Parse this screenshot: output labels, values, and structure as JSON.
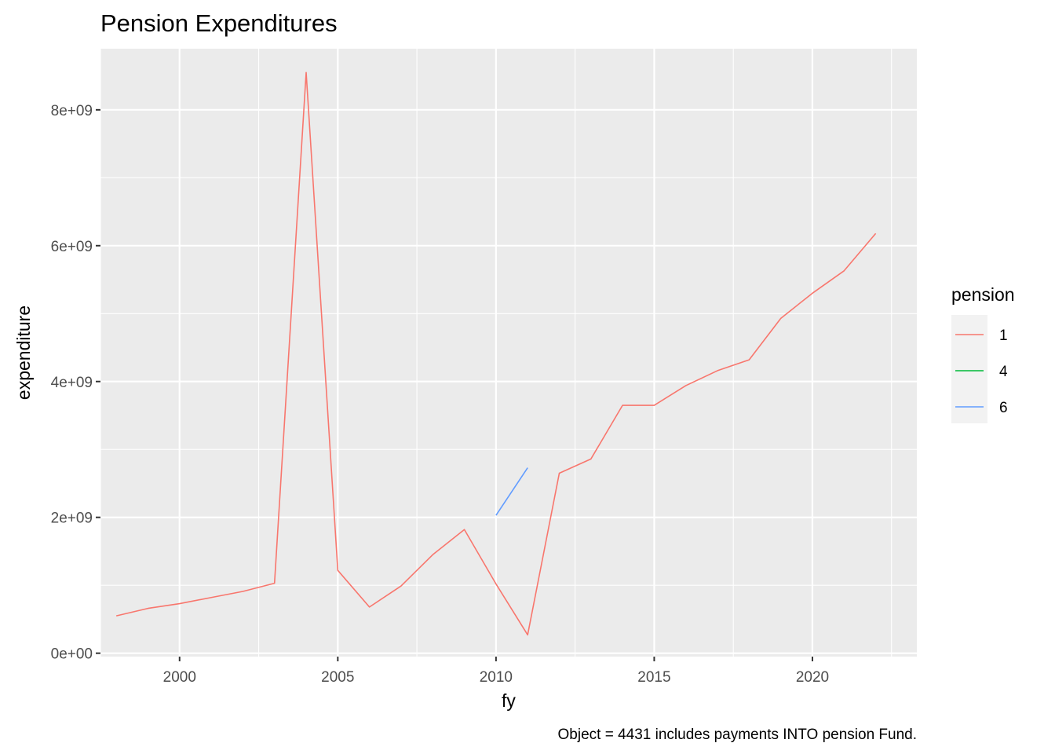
{
  "chart_data": {
    "type": "line",
    "title": "Pension Expenditures",
    "xlabel": "fy",
    "ylabel": "expenditure",
    "caption": "Object = 4431 includes payments INTO pension Fund.",
    "xlim": [
      1997.5,
      2023.3
    ],
    "ylim": [
      -50000000.0,
      8900000000.0
    ],
    "x_ticks": [
      2000,
      2005,
      2010,
      2015,
      2020
    ],
    "x_tick_labels": [
      "2000",
      "2005",
      "2010",
      "2015",
      "2020"
    ],
    "y_ticks": [
      0,
      2000000000,
      4000000000,
      6000000000,
      8000000000
    ],
    "y_tick_labels": [
      "0e+00",
      "2e+09",
      "4e+09",
      "6e+09",
      "8e+09"
    ],
    "grid": true,
    "legend": {
      "title": "pension",
      "position": "right"
    },
    "series": [
      {
        "name": "1",
        "color": "#F8766D",
        "points": [
          [
            1998,
            550000000.0
          ],
          [
            1999,
            660000000.0
          ],
          [
            2000,
            730000000.0
          ],
          [
            2001,
            820000000.0
          ],
          [
            2002,
            910000000.0
          ],
          [
            2003,
            1030000000.0
          ],
          [
            2004,
            8550000000.0
          ],
          [
            2005,
            1220000000.0
          ],
          [
            2006,
            680000000.0
          ],
          [
            2007,
            990000000.0
          ],
          [
            2008,
            1450000000.0
          ],
          [
            2009,
            1820000000.0
          ],
          [
            2010,
            1020000000.0
          ],
          [
            2011,
            270000000.0
          ],
          [
            2012,
            2650000000.0
          ],
          [
            2013,
            2860000000.0
          ],
          [
            2014,
            3650000000.0
          ],
          [
            2015,
            3650000000.0
          ],
          [
            2016,
            3940000000.0
          ],
          [
            2017,
            4160000000.0
          ],
          [
            2018,
            4320000000.0
          ],
          [
            2019,
            4930000000.0
          ],
          [
            2020,
            5300000000.0
          ],
          [
            2021,
            5630000000.0
          ],
          [
            2022,
            6180000000.0
          ]
        ]
      },
      {
        "name": "4",
        "color": "#00BA38",
        "points": []
      },
      {
        "name": "6",
        "color": "#619CFF",
        "points": [
          [
            2010,
            2030000000.0
          ],
          [
            2011,
            2730000000.0
          ]
        ]
      }
    ]
  }
}
